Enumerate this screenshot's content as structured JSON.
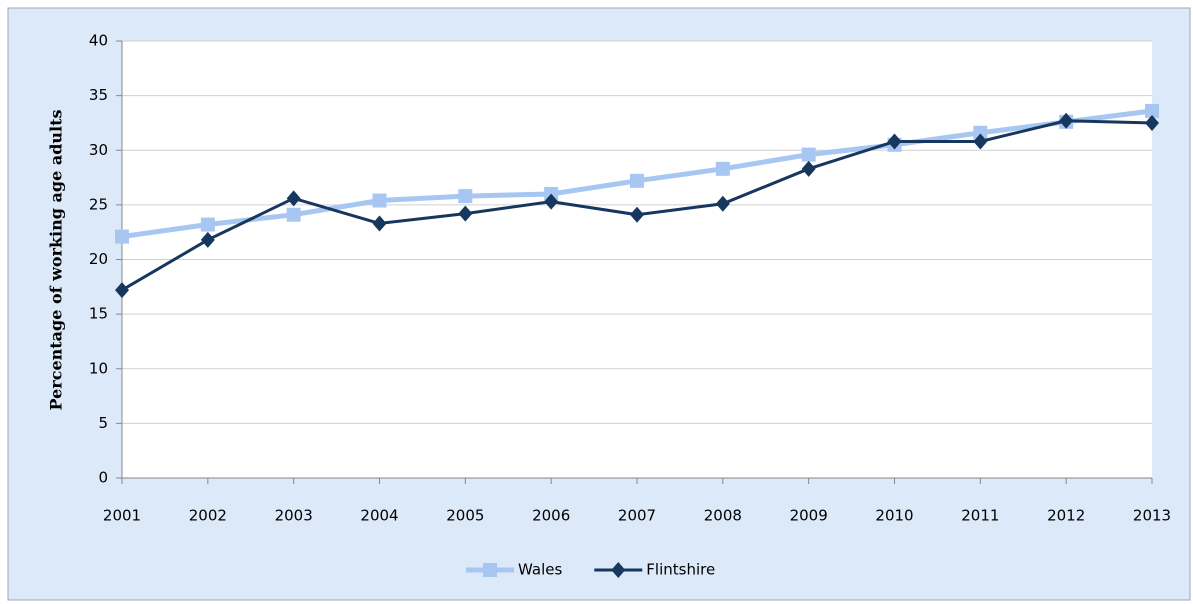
{
  "chart_data": {
    "type": "line",
    "y_axis_label": "Percentage of working age adults",
    "categories": [
      "2001",
      "2002",
      "2003",
      "2004",
      "2005",
      "2006",
      "2007",
      "2008",
      "2009",
      "2010",
      "2011",
      "2012",
      "2013"
    ],
    "series": [
      {
        "name": "Wales",
        "color": "#a7c7f2",
        "marker": "square",
        "values": [
          22.1,
          23.2,
          24.1,
          25.4,
          25.8,
          26.0,
          27.2,
          28.3,
          29.6,
          30.5,
          31.6,
          32.6,
          33.6
        ]
      },
      {
        "name": "Flintshire",
        "color": "#17375e",
        "marker": "diamond",
        "values": [
          17.2,
          21.8,
          25.6,
          23.3,
          24.2,
          25.3,
          24.1,
          25.1,
          28.3,
          30.8,
          30.8,
          32.7,
          32.5
        ]
      }
    ],
    "ylim": [
      0,
      40
    ],
    "yticks": [
      0,
      5,
      10,
      15,
      20,
      25,
      30,
      35,
      40
    ],
    "grid": true,
    "legend": "bottom"
  }
}
